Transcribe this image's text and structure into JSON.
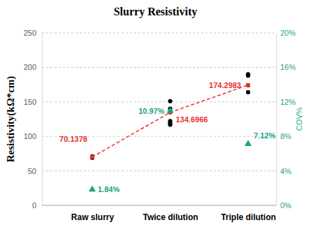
{
  "chart_data": {
    "type": "line",
    "title": "Slurry Resistivity",
    "y_label": "Resistivity(kΩ*cm)",
    "y2_label": "COV%",
    "categories": [
      "Raw slurry",
      "Twice dilution",
      "Triple dilution"
    ],
    "ylim": [
      0,
      250
    ],
    "yticks": [
      0,
      50,
      100,
      150,
      200,
      250
    ],
    "y2lim": [
      0,
      20
    ],
    "y2ticks": [
      {
        "value": 0,
        "label": "0%"
      },
      {
        "value": 4,
        "label": "4%"
      },
      {
        "value": 8,
        "label": "8%"
      },
      {
        "value": 12,
        "label": "12%"
      },
      {
        "value": 16,
        "label": "16%"
      },
      {
        "value": 20,
        "label": "20%"
      }
    ],
    "grid": true,
    "series": [
      {
        "type": "scatter",
        "color": "#000000",
        "marker": "circle",
        "values": [
          [
            69,
            71
          ],
          [
            151,
            140,
            135,
            122,
            119,
            117
          ],
          [
            190,
            188,
            174,
            164
          ]
        ]
      },
      {
        "type": "line",
        "color": "#e8302e",
        "marker": "circle",
        "line_style": "dashed",
        "data_labels": true,
        "values": [
          70.1378,
          134.6966,
          174.2983
        ]
      },
      {
        "type": "scatter",
        "axis": "y2",
        "color": "#1aa386",
        "marker": "triangle",
        "data_labels": true,
        "values": [
          1.84,
          10.97,
          7.12
        ],
        "value_labels": [
          "1.84%",
          "10.97%",
          "7.12%"
        ]
      }
    ]
  }
}
